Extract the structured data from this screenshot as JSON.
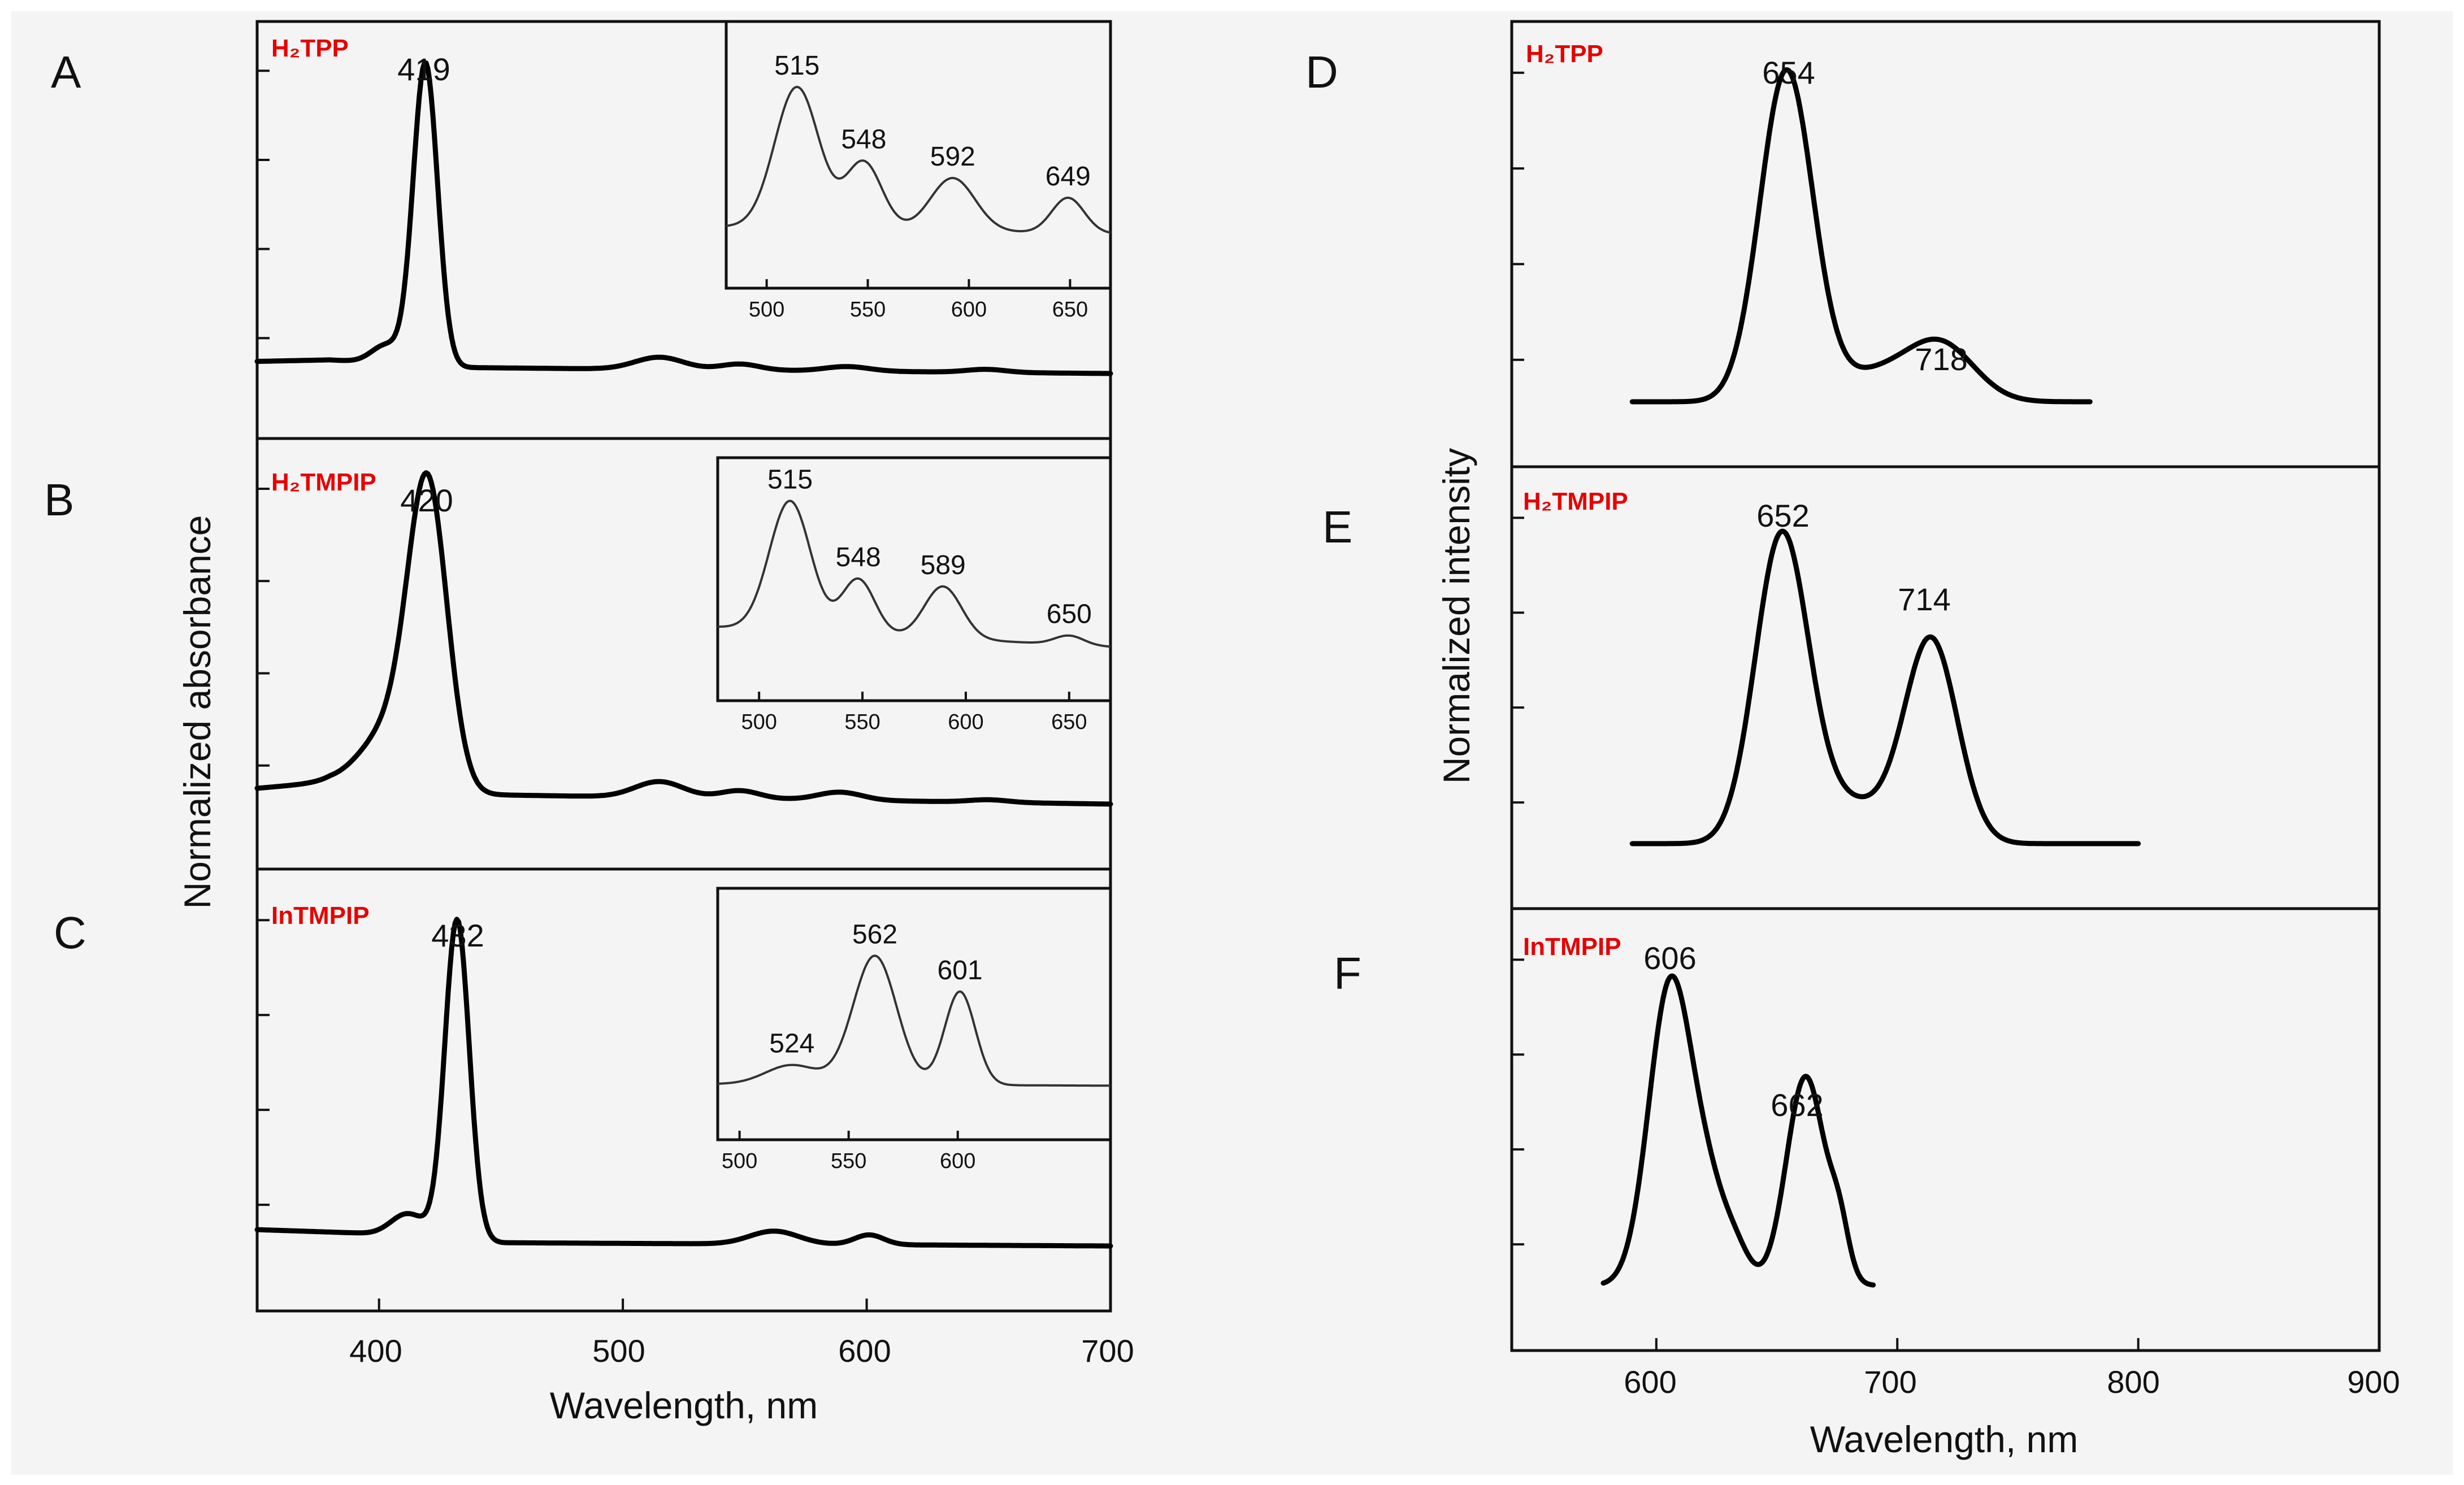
{
  "figure": {
    "left_axis_label": "Normalized absorbance",
    "right_axis_label": "Normalized intensity",
    "left_xlabel": "Wavelength, nm",
    "right_xlabel": "Wavelength, nm",
    "background": "#f4f4f4",
    "label_color": "#e60000"
  },
  "chart_data": [
    {
      "panel": "A",
      "type": "line",
      "kind": "absorbance",
      "compound": "H₂TPP",
      "xlim": [
        350,
        700
      ],
      "ylim": [
        0,
        1.05
      ],
      "peak_labels": [
        "419"
      ],
      "peaks": [
        {
          "x": 419,
          "h": 1.0,
          "w": 5
        },
        {
          "x": 403,
          "h": 0.06,
          "w": 6
        },
        {
          "x": 515,
          "h": 0.04,
          "w": 10
        },
        {
          "x": 548,
          "h": 0.02,
          "w": 8
        },
        {
          "x": 592,
          "h": 0.015,
          "w": 9
        },
        {
          "x": 649,
          "h": 0.01,
          "w": 8
        }
      ],
      "baseline": [
        [
          350,
          0.04
        ],
        [
          380,
          0.045
        ],
        [
          430,
          0.02
        ],
        [
          700,
          0.0
        ]
      ],
      "inset": {
        "xlim": [
          480,
          670
        ],
        "xticks": [
          500,
          550,
          600,
          650
        ],
        "peak_labels": [
          "515",
          "548",
          "592",
          "649"
        ],
        "peaks": [
          {
            "x": 515,
            "h": 0.8,
            "w": 11
          },
          {
            "x": 548,
            "h": 0.38,
            "w": 9
          },
          {
            "x": 592,
            "h": 0.3,
            "w": 11
          },
          {
            "x": 649,
            "h": 0.2,
            "w": 8
          }
        ],
        "baseline": [
          [
            480,
            0.06
          ],
          [
            670,
            0.02
          ]
        ]
      }
    },
    {
      "panel": "B",
      "type": "line",
      "kind": "absorbance",
      "compound": "H₂TMPIP",
      "xlim": [
        350,
        700
      ],
      "ylim": [
        0,
        1.05
      ],
      "peak_labels": [
        "420"
      ],
      "peaks": [
        {
          "x": 420,
          "h": 0.92,
          "w": 8
        },
        {
          "x": 405,
          "h": 0.18,
          "w": 12
        },
        {
          "x": 515,
          "h": 0.05,
          "w": 10
        },
        {
          "x": 548,
          "h": 0.025,
          "w": 8
        },
        {
          "x": 589,
          "h": 0.025,
          "w": 9
        },
        {
          "x": 650,
          "h": 0.008,
          "w": 8
        }
      ],
      "baseline": [
        [
          350,
          0.05
        ],
        [
          380,
          0.07
        ],
        [
          440,
          0.03
        ],
        [
          700,
          0.0
        ]
      ],
      "inset": {
        "xlim": [
          480,
          670
        ],
        "xticks": [
          500,
          550,
          600,
          650
        ],
        "peak_labels": [
          "515",
          "548",
          "589",
          "650"
        ],
        "peaks": [
          {
            "x": 515,
            "h": 0.85,
            "w": 10
          },
          {
            "x": 548,
            "h": 0.36,
            "w": 8
          },
          {
            "x": 589,
            "h": 0.34,
            "w": 9
          },
          {
            "x": 650,
            "h": 0.06,
            "w": 7
          }
        ],
        "baseline": [
          [
            480,
            0.15
          ],
          [
            670,
            0.02
          ]
        ]
      }
    },
    {
      "panel": "C",
      "type": "line",
      "kind": "absorbance",
      "compound": "InTMPIP",
      "xlim": [
        350,
        700
      ],
      "ylim": [
        0,
        1.05
      ],
      "peak_labels": [
        "432"
      ],
      "peaks": [
        {
          "x": 432,
          "h": 0.98,
          "w": 5
        },
        {
          "x": 412,
          "h": 0.07,
          "w": 7
        },
        {
          "x": 562,
          "h": 0.04,
          "w": 10
        },
        {
          "x": 601,
          "h": 0.03,
          "w": 6
        }
      ],
      "baseline": [
        [
          350,
          0.05
        ],
        [
          390,
          0.04
        ],
        [
          450,
          0.01
        ],
        [
          700,
          0.0
        ]
      ],
      "inset": {
        "xlim": [
          490,
          670
        ],
        "xticks": [
          500,
          550,
          600
        ],
        "peak_labels": [
          "524",
          "562",
          "601"
        ],
        "peaks": [
          {
            "x": 524,
            "h": 0.12,
            "w": 12
          },
          {
            "x": 562,
            "h": 0.8,
            "w": 10
          },
          {
            "x": 601,
            "h": 0.58,
            "w": 7
          }
        ],
        "baseline": [
          [
            490,
            0.03
          ],
          [
            670,
            0.02
          ]
        ]
      }
    },
    {
      "panel": "D",
      "type": "line",
      "kind": "emission",
      "compound": "H₂TPP",
      "xlim": [
        540,
        900
      ],
      "ylim": [
        0,
        1.05
      ],
      "peak_labels": [
        "654",
        "718"
      ],
      "range": [
        590,
        780
      ],
      "peaks": [
        {
          "x": 654,
          "h": 1.0,
          "w": 11
        },
        {
          "x": 690,
          "h": 0.08,
          "w": 16
        },
        {
          "x": 718,
          "h": 0.17,
          "w": 14
        }
      ]
    },
    {
      "panel": "E",
      "type": "line",
      "kind": "emission",
      "compound": "H₂TMPIP",
      "xlim": [
        540,
        900
      ],
      "ylim": [
        0,
        1.05
      ],
      "peak_labels": [
        "652",
        "714"
      ],
      "range": [
        590,
        800
      ],
      "peaks": [
        {
          "x": 652,
          "h": 0.93,
          "w": 11
        },
        {
          "x": 680,
          "h": 0.12,
          "w": 16
        },
        {
          "x": 714,
          "h": 0.62,
          "w": 11
        }
      ]
    },
    {
      "panel": "F",
      "type": "line",
      "kind": "emission",
      "compound": "InTMPIP",
      "xlim": [
        540,
        900
      ],
      "ylim": [
        0,
        1.05
      ],
      "peak_labels": [
        "606",
        "662"
      ],
      "range": [
        578,
        690
      ],
      "peaks": [
        {
          "x": 606,
          "h": 0.93,
          "w": 9
        },
        {
          "x": 622,
          "h": 0.22,
          "w": 7
        },
        {
          "x": 633,
          "h": 0.1,
          "w": 6
        },
        {
          "x": 662,
          "h": 0.64,
          "w": 8
        },
        {
          "x": 676,
          "h": 0.14,
          "w": 4
        }
      ]
    }
  ],
  "left_axis": {
    "ticks": [
      "400",
      "500",
      "600",
      "700"
    ],
    "tick_values": [
      400,
      500,
      600,
      700
    ]
  },
  "right_axis": {
    "ticks": [
      "600",
      "700",
      "800",
      "900"
    ],
    "tick_values": [
      600,
      700,
      800,
      900
    ]
  }
}
